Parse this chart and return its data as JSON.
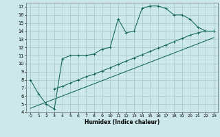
{
  "xlabel": "Humidex (Indice chaleur)",
  "bg_color": "#cce8ea",
  "grid_color": "#aacccc",
  "line_color": "#1a6b5a",
  "xlim": [
    -0.5,
    23.5
  ],
  "ylim": [
    4,
    17.5
  ],
  "xticks": [
    0,
    1,
    2,
    3,
    4,
    5,
    6,
    7,
    8,
    9,
    10,
    11,
    12,
    13,
    14,
    15,
    16,
    17,
    18,
    19,
    20,
    21,
    22,
    23
  ],
  "yticks": [
    4,
    5,
    6,
    7,
    8,
    9,
    10,
    11,
    12,
    13,
    14,
    15,
    16,
    17
  ],
  "line1_x": [
    0,
    1,
    2,
    3,
    4,
    5,
    6,
    7,
    8,
    9,
    10,
    11,
    12,
    13,
    14,
    15,
    16,
    17,
    18,
    19,
    20,
    21,
    22,
    23
  ],
  "line1_y": [
    8.0,
    6.3,
    5.0,
    4.4,
    10.6,
    11.0,
    11.0,
    11.0,
    11.2,
    11.8,
    12.0,
    15.5,
    13.8,
    14.0,
    16.8,
    17.1,
    17.1,
    16.8,
    16.0,
    16.0,
    15.5,
    14.5,
    14.0,
    14.0
  ],
  "line2_x": [
    3,
    4,
    5,
    6,
    7,
    8,
    9,
    10,
    11,
    12,
    13,
    14,
    15,
    16,
    17,
    18,
    19,
    20,
    21,
    22,
    23
  ],
  "line2_y": [
    6.9,
    7.2,
    7.6,
    8.0,
    8.4,
    8.7,
    9.1,
    9.5,
    9.9,
    10.3,
    10.7,
    11.1,
    11.5,
    11.9,
    12.3,
    12.7,
    13.1,
    13.5,
    13.8,
    14.0,
    14.0
  ],
  "line3_x": [
    0,
    23
  ],
  "line3_y": [
    4.5,
    13.2
  ]
}
